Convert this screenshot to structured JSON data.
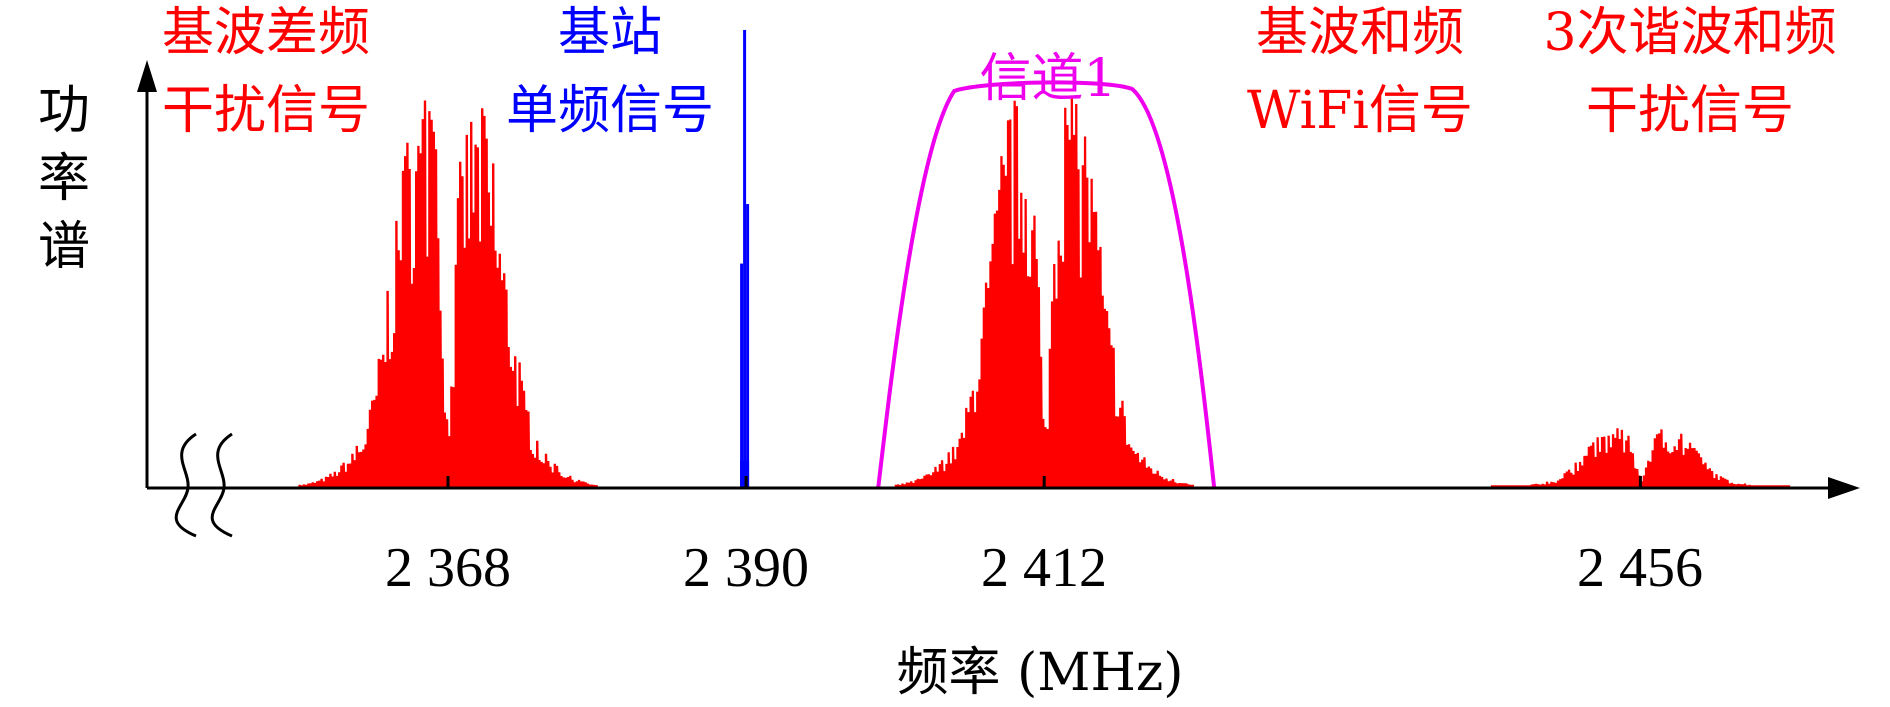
{
  "axes": {
    "x_label": "频率 (MHz)",
    "y_label_chars": [
      "功",
      "率",
      "谱"
    ],
    "ticks": [
      "2 368",
      "2 390",
      "2 412",
      "2 456"
    ]
  },
  "annotations": {
    "diff_intermod": [
      "基波差频",
      "干扰信号"
    ],
    "base_station": [
      "基站",
      "单频信号"
    ],
    "channel": "信道1",
    "wifi_signal": [
      "基波和频",
      "WiFi信号"
    ],
    "third_harmonic": [
      "3次谐波和频",
      "干扰信号"
    ]
  },
  "colors": {
    "interference": "#ff0000",
    "base_station": "#0000ff",
    "channel_filter": "#ee00ee",
    "axis": "#000000"
  },
  "chart_data": {
    "type": "spectrum",
    "x_unit": "MHz",
    "y_unit": "relative power",
    "ylim": [
      0,
      1
    ],
    "spectra": [
      {
        "center": 2368,
        "halfwidth": 11,
        "peak": 0.85
      },
      {
        "center": 2412,
        "halfwidth": 11,
        "peak": 0.85
      },
      {
        "center": 2456,
        "halfwidth": 11,
        "peak": 0.13
      }
    ],
    "tone": {
      "freq": 2390,
      "power": 1.0
    },
    "channel_1": {
      "center": 2412,
      "passband_power": 1.0
    }
  }
}
